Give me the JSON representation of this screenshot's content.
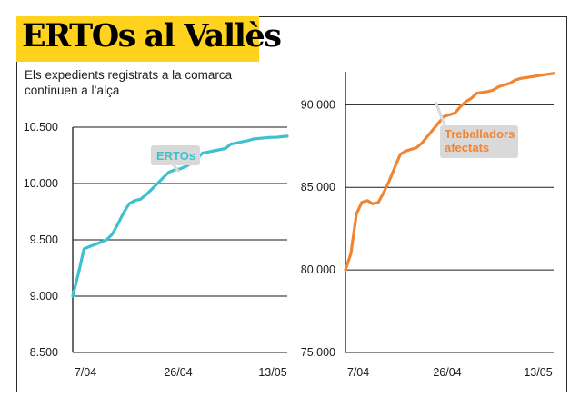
{
  "title": "ERTOs al Vallès",
  "subtitle": "Els expedients registrats a la comarca continuen a l’alça",
  "colors": {
    "accent": "#ffd21e",
    "ertos": "#3ec1cf",
    "workers": "#f08534",
    "callout_bg": "#d9d9d9"
  },
  "chart_data": [
    {
      "type": "line",
      "x_ticks": [
        "7/04",
        "26/04",
        "13/05"
      ],
      "y_ticks": [
        "8.500",
        "9.000",
        "9.500",
        "10.000",
        "10.500"
      ],
      "ylim": [
        8500,
        10500
      ],
      "grid": true,
      "callout": "ERTOs",
      "series": [
        {
          "name": "ERTOs",
          "x": [
            "6/04",
            "7/04",
            "8/04",
            "9/04",
            "10/04",
            "11/04",
            "12/04",
            "13/04",
            "14/04",
            "15/04",
            "16/04",
            "17/04",
            "18/04",
            "19/04",
            "20/04",
            "21/04",
            "22/04",
            "23/04",
            "24/04",
            "25/04",
            "26/04",
            "27/04",
            "28/04",
            "29/04",
            "30/04",
            "1/05",
            "2/05",
            "3/05",
            "4/05",
            "5/05",
            "6/05",
            "7/05",
            "8/05",
            "9/05",
            "10/05",
            "11/05",
            "12/05",
            "13/05",
            "14/05"
          ],
          "values": [
            9000,
            9200,
            9420,
            9440,
            9460,
            9480,
            9500,
            9550,
            9640,
            9740,
            9820,
            9850,
            9860,
            9900,
            9950,
            10000,
            10050,
            10100,
            10120,
            10130,
            10150,
            10180,
            10220,
            10270,
            10280,
            10290,
            10300,
            10310,
            10350,
            10360,
            10370,
            10380,
            10395,
            10400,
            10405,
            10410,
            10410,
            10415,
            10420
          ]
        }
      ]
    },
    {
      "type": "line",
      "x_ticks": [
        "7/04",
        "26/04",
        "13/05"
      ],
      "y_ticks": [
        "75.000",
        "80.000",
        "85.000",
        "90.000"
      ],
      "ylim": [
        75000,
        92000
      ],
      "grid": true,
      "callout": "Treballadors afectats",
      "series": [
        {
          "name": "Treballadors afectats",
          "x": [
            "6/04",
            "7/04",
            "8/04",
            "9/04",
            "10/04",
            "11/04",
            "12/04",
            "13/04",
            "14/04",
            "15/04",
            "16/04",
            "17/04",
            "18/04",
            "19/04",
            "20/04",
            "21/04",
            "22/04",
            "23/04",
            "24/04",
            "25/04",
            "26/04",
            "27/04",
            "28/04",
            "29/04",
            "30/04",
            "1/05",
            "2/05",
            "3/05",
            "4/05",
            "5/05",
            "6/05",
            "7/05",
            "8/05",
            "9/05",
            "10/05",
            "11/05",
            "12/05",
            "13/05",
            "14/05"
          ],
          "values": [
            80000,
            81000,
            83400,
            84100,
            84200,
            84000,
            84100,
            84700,
            85400,
            86200,
            87000,
            87200,
            87300,
            87400,
            87700,
            88100,
            88500,
            88900,
            89300,
            89400,
            89500,
            89900,
            90200,
            90400,
            90700,
            90750,
            90800,
            90900,
            91100,
            91200,
            91300,
            91500,
            91600,
            91650,
            91700,
            91750,
            91800,
            91850,
            91900
          ]
        }
      ]
    }
  ]
}
